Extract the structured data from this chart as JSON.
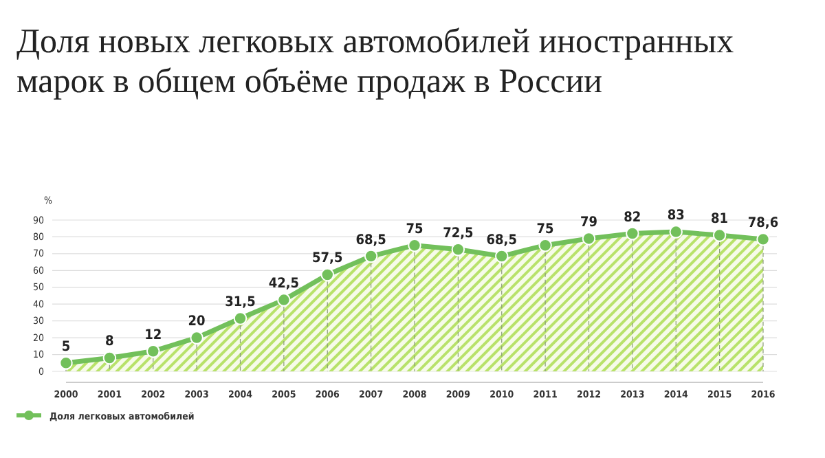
{
  "chart_data": {
    "type": "area",
    "title": "Доля новых легковых автомобилей иностранных марок в общем объёме продаж в России",
    "ylabel": "%",
    "categories": [
      "2000",
      "2001",
      "2002",
      "2003",
      "2004",
      "2005",
      "2006",
      "2007",
      "2008",
      "2009",
      "2010",
      "2011",
      "2012",
      "2013",
      "2014",
      "2015",
      "2016"
    ],
    "series": [
      {
        "name": "Доля легковых автомобилей",
        "color": "#72c05b",
        "values": [
          5,
          8,
          12,
          20,
          31.5,
          42.5,
          57.5,
          68.5,
          75,
          72.5,
          68.5,
          75,
          79,
          82,
          83,
          81,
          78.6
        ],
        "value_labels": [
          "5",
          "8",
          "12",
          "20",
          "31,5",
          "42,5",
          "57,5",
          "68,5",
          "75",
          "72,5",
          "68,5",
          "75",
          "79",
          "82",
          "83",
          "81",
          "78,6"
        ]
      }
    ],
    "ylim": [
      0,
      90
    ],
    "yticks": [
      0,
      10,
      20,
      30,
      40,
      50,
      60,
      70,
      80,
      90
    ],
    "grid": true,
    "legend": "bottom left",
    "marker": "circle",
    "line_style": "solid"
  }
}
